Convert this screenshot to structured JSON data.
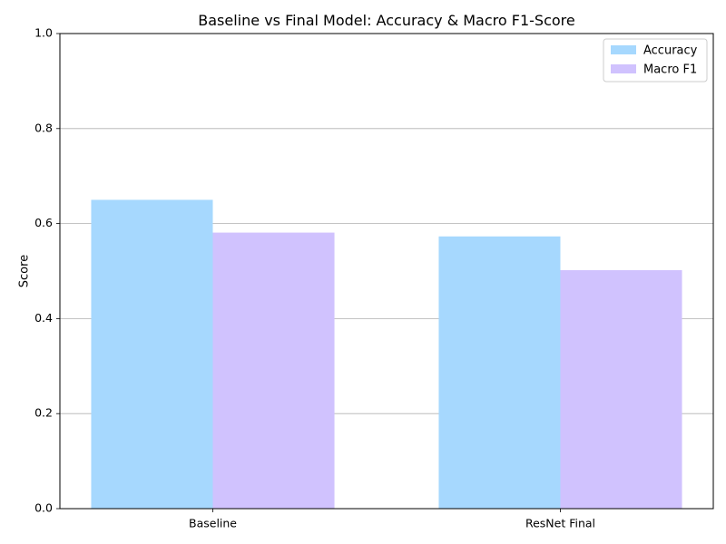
{
  "chart_data": {
    "type": "bar",
    "title": "Baseline vs Final Model: Accuracy & Macro F1-Score",
    "xlabel": "",
    "ylabel": "Score",
    "ylim": [
      0,
      1.0
    ],
    "yticks": [
      "0.0",
      "0.2",
      "0.4",
      "0.6",
      "0.8",
      "1.0"
    ],
    "categories": [
      "Baseline",
      "ResNet Final"
    ],
    "series": [
      {
        "name": "Accuracy",
        "values": [
          0.65,
          0.573
        ],
        "color": "#a6d8fe"
      },
      {
        "name": "Macro F1",
        "values": [
          0.581,
          0.502
        ],
        "color": "#d0c2fe"
      }
    ],
    "grid": "y-major",
    "legend_position": "top-right"
  }
}
